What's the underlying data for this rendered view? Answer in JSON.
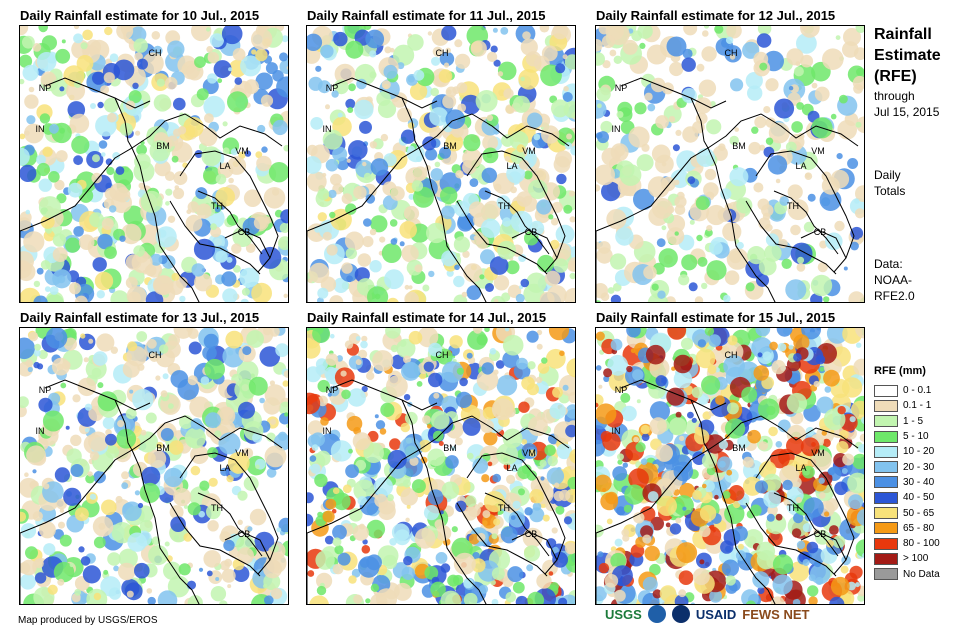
{
  "panels": [
    {
      "title": "Daily Rainfall estimate for 10 Jul., 2015",
      "rain_level": 1
    },
    {
      "title": "Daily Rainfall estimate for 11 Jul., 2015",
      "rain_level": 1
    },
    {
      "title": "Daily Rainfall estimate for 12 Jul., 2015",
      "rain_level": 0
    },
    {
      "title": "Daily Rainfall estimate for 13 Jul., 2015",
      "rain_level": 1
    },
    {
      "title": "Daily Rainfall estimate for 14 Jul., 2015",
      "rain_level": 2
    },
    {
      "title": "Daily Rainfall estimate for 15 Jul., 2015",
      "rain_level": 3
    }
  ],
  "country_labels": [
    "CH",
    "NP",
    "IN",
    "BM",
    "LA",
    "VM",
    "TH",
    "CB"
  ],
  "sidebar": {
    "heading_line1": "Rainfall",
    "heading_line2": "Estimate",
    "heading_line3": "(RFE)",
    "through_line1": "through",
    "through_line2": "Jul 15, 2015",
    "daily_line1": "Daily",
    "daily_line2": "Totals",
    "data_line1": "Data:",
    "data_line2": "NOAA-",
    "data_line3": "RFE2.0"
  },
  "legend": {
    "title": "RFE (mm)",
    "items": [
      {
        "label": "0 - 0.1",
        "color": "#ffffff"
      },
      {
        "label": "0.1 - 1",
        "color": "#efdcb9"
      },
      {
        "label": "1 - 5",
        "color": "#c2f5b0"
      },
      {
        "label": "5 - 10",
        "color": "#6ee86a"
      },
      {
        "label": "10 - 20",
        "color": "#b5ecf7"
      },
      {
        "label": "20 - 30",
        "color": "#82c3ef"
      },
      {
        "label": "30 - 40",
        "color": "#4b90e4"
      },
      {
        "label": "40 - 50",
        "color": "#2c56d6"
      },
      {
        "label": "50 - 65",
        "color": "#f8e27a"
      },
      {
        "label": "65 - 80",
        "color": "#f59a16"
      },
      {
        "label": "80 - 100",
        "color": "#e8380d"
      },
      {
        "label": "> 100",
        "color": "#a31b16"
      },
      {
        "label": "No Data",
        "color": "#9a9a9a"
      }
    ]
  },
  "credit": "Map produced by USGS/EROS",
  "logos": {
    "usgs": "USGS",
    "usaid": "USAID",
    "fewsnet": "FEWS NET"
  },
  "colors": {
    "border": "#000000",
    "usgs": "#1b7a3a",
    "usaid": "#0b2f6b",
    "fewsnet": "#8a4a1c",
    "noaa": "#1f5fa8"
  }
}
